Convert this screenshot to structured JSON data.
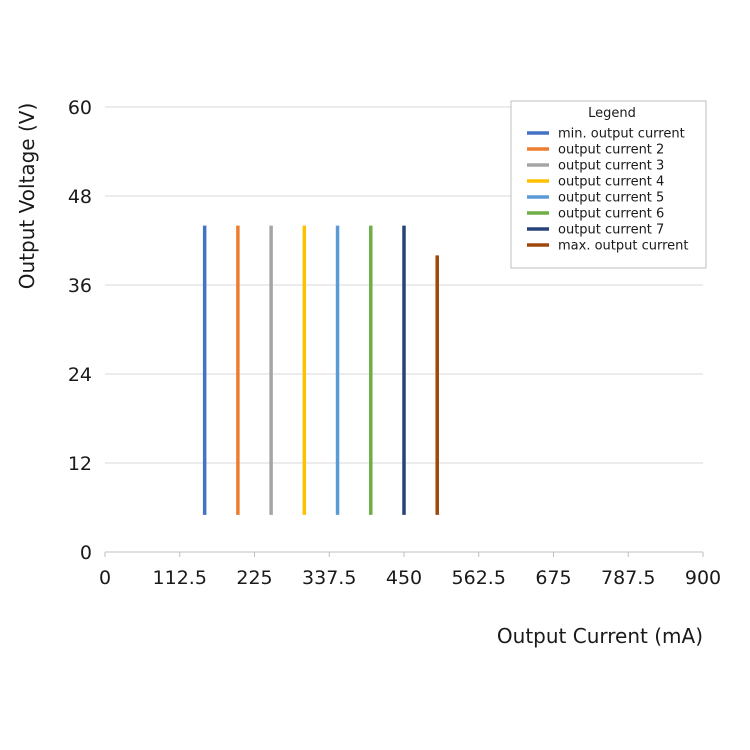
{
  "chart_data": {
    "type": "line",
    "title": "",
    "xlabel": "Output Current (mA)",
    "ylabel": "Output Voltage (V)",
    "xlim": [
      0,
      900
    ],
    "ylim": [
      0,
      60
    ],
    "x_ticks": [
      "0",
      "112.5",
      "225",
      "337.5",
      "450",
      "562.5",
      "675",
      "787.5",
      "900"
    ],
    "y_ticks": [
      "0",
      "12",
      "24",
      "36",
      "48",
      "60"
    ],
    "grid": "horizontal",
    "legend": {
      "title": "Legend",
      "position": "top-right"
    },
    "series": [
      {
        "name": "min. output current",
        "color": "#4472c4",
        "x": [
          150,
          150
        ],
        "y": [
          5,
          44
        ]
      },
      {
        "name": "output current 2",
        "color": "#ed7d31",
        "x": [
          200,
          200
        ],
        "y": [
          5,
          44
        ]
      },
      {
        "name": "output current 3",
        "color": "#a5a5a5",
        "x": [
          250,
          250
        ],
        "y": [
          5,
          44
        ]
      },
      {
        "name": "output current 4",
        "color": "#ffc000",
        "x": [
          300,
          300
        ],
        "y": [
          5,
          44
        ]
      },
      {
        "name": "output current 5",
        "color": "#5b9bd5",
        "x": [
          350,
          350
        ],
        "y": [
          5,
          44
        ]
      },
      {
        "name": "output current 6",
        "color": "#70ad47",
        "x": [
          400,
          400
        ],
        "y": [
          5,
          44
        ]
      },
      {
        "name": "output current 7",
        "color": "#264478",
        "x": [
          450,
          450
        ],
        "y": [
          5,
          44
        ]
      },
      {
        "name": "max. output current",
        "color": "#9e480e",
        "x": [
          500,
          500
        ],
        "y": [
          5,
          40
        ]
      }
    ]
  }
}
